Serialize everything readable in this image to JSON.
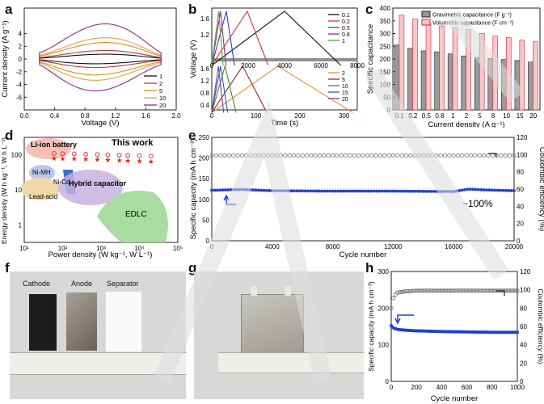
{
  "panels": {
    "a": {
      "letter": "a",
      "xlabel": "Voltage (V)",
      "ylabel": "Current density (A g⁻¹)",
      "xticks": [
        "0.0",
        "0.4",
        "0.8",
        "1.2",
        "1.6",
        "2.0"
      ],
      "yticks": [
        "4",
        "2",
        "0",
        "-2",
        "-4",
        "-6"
      ],
      "legend": [
        "1",
        "2",
        "5",
        "10",
        "20"
      ]
    },
    "b": {
      "letter": "b",
      "xlabel": "Time (s)",
      "ylabel": "Voltage (V)",
      "xticks_top": [
        "0",
        "2000",
        "4000",
        "6000",
        "8000"
      ],
      "xticks_bottom": [
        "0",
        "100",
        "200",
        "300"
      ],
      "yticks_top": [
        "1.6",
        "1.2"
      ],
      "yticks_bottom": [
        "1.6",
        "1.2",
        "0.8",
        "0.4"
      ],
      "legend_top": [
        "0.1",
        "0.2",
        "0.5",
        "0.8",
        "1"
      ],
      "legend_bottom": [
        "2",
        "5",
        "10",
        "15",
        "20"
      ]
    },
    "c": {
      "letter": "c",
      "xlabel": "Current density (A g⁻¹)",
      "ylabel": "Specific capacitance",
      "legend": [
        "Gravimetric capacitance (F g⁻¹)",
        "Volumetric capacitance (F cm⁻³)"
      ],
      "yticks": [
        "400",
        "350",
        "300",
        "250",
        "200",
        "150",
        "100",
        "50",
        "0"
      ]
    },
    "d": {
      "letter": "d",
      "xlabel": "Power density (W kg⁻¹, W L⁻¹)",
      "ylabel": "Energy density (W h kg⁻¹, W h L⁻¹)",
      "regions": [
        "Li-ion battery",
        "Ni-MH",
        "Ni-Cd",
        "Lead-acid",
        "Hybrid capacitor",
        "EDLC"
      ],
      "annotation": "This work",
      "xticks": [
        "10¹",
        "10²",
        "10³",
        "10⁴",
        "10⁵"
      ],
      "yticks": [
        "100",
        "10",
        "1"
      ]
    },
    "e": {
      "letter": "e",
      "xlabel": "Cycle number",
      "ylabel": "Specific capacity (mA h cm⁻³)",
      "y2label": "Coulombic efficiency (%)",
      "xticks": [
        "0",
        "4000",
        "8000",
        "12000",
        "16000",
        "20000"
      ],
      "yticks": [
        "250",
        "200",
        "150",
        "100",
        "50",
        "0"
      ],
      "y2ticks": [
        "120",
        "100",
        "80",
        "60",
        "40",
        "20",
        "0"
      ],
      "annotation": "~100%"
    },
    "f": {
      "letter": "f",
      "labels": [
        "Cathode",
        "Anode",
        "Separator"
      ]
    },
    "g": {
      "letter": "g"
    },
    "h": {
      "letter": "h",
      "xlabel": "Cycle number",
      "ylabel": "Specific capacity (mA h cm⁻³)",
      "y2label": "Coulombic efficiency (%)",
      "xticks": [
        "0",
        "200",
        "400",
        "600",
        "800",
        "1000"
      ],
      "yticks": [
        "300",
        "200",
        "100",
        "0"
      ],
      "y2ticks": [
        "120",
        "100",
        "80",
        "60",
        "40",
        "20",
        "0"
      ]
    }
  },
  "chart_data": [
    {
      "type": "line",
      "panel": "a",
      "title": "",
      "xlabel": "Voltage (V)",
      "ylabel": "Current density (A g⁻¹)",
      "xlim": [
        0,
        2.0
      ],
      "ylim": [
        -8,
        8
      ],
      "series": [
        {
          "name": "1",
          "color": "#111111"
        },
        {
          "name": "2",
          "color": "#c0392b"
        },
        {
          "name": "5",
          "color": "#e08a20"
        },
        {
          "name": "10",
          "color": "#e6a040"
        },
        {
          "name": "20",
          "color": "#8e2d8e"
        }
      ],
      "peak_current": {
        "1": 0.9,
        "2": 1.6,
        "5": 3.1,
        "10": 4.0,
        "20": 6.6
      },
      "trough_current": {
        "1": -0.9,
        "2": -1.6,
        "5": -3.0,
        "10": -4.0,
        "20": -6.0
      }
    },
    {
      "type": "line",
      "panel": "b-top",
      "xlabel": "Time (s)",
      "ylabel": "Voltage (V)",
      "xlim": [
        0,
        8000
      ],
      "series": [
        {
          "name": "0.1",
          "color": "#111111",
          "t_peak": 4000,
          "t_end": 7100
        },
        {
          "name": "0.2",
          "color": "#e0303a",
          "t_peak": 1950,
          "t_end": 3100
        },
        {
          "name": "0.5",
          "color": "#3040c0",
          "t_peak": 800,
          "t_end": 1250
        },
        {
          "name": "0.8",
          "color": "#a02090",
          "t_peak": 480,
          "t_end": 780
        },
        {
          "name": "1",
          "color": "#5aaa30",
          "t_peak": 380,
          "t_end": 620
        }
      ]
    },
    {
      "type": "line",
      "panel": "b-bottom",
      "xlabel": "Time (s)",
      "ylabel": "Voltage (V)",
      "xlim": [
        0,
        330
      ],
      "series": [
        {
          "name": "2",
          "color": "#e89030",
          "t_peak": 150,
          "t_end": 320
        },
        {
          "name": "5",
          "color": "#a02020",
          "t_peak": 70,
          "t_end": 125
        },
        {
          "name": "10",
          "color": "#4a8a30",
          "t_peak": 30,
          "t_end": 55
        },
        {
          "name": "15",
          "color": "#2060c0",
          "t_peak": 20,
          "t_end": 36
        },
        {
          "name": "20",
          "color": "#8a3a8a",
          "t_peak": 15,
          "t_end": 27
        }
      ]
    },
    {
      "type": "bar",
      "panel": "c",
      "categories": [
        "0.1",
        "0.2",
        "0.5",
        "0.8",
        "1",
        "2",
        "5",
        "8",
        "10",
        "15",
        "20"
      ],
      "ylim": [
        0,
        400
      ],
      "series": [
        {
          "name": "Gravimetric capacitance (F g⁻¹)",
          "values": [
            255,
            242,
            232,
            228,
            220,
            212,
            206,
            202,
            198,
            194,
            188
          ]
        },
        {
          "name": "Volumetric capacitance (F cm⁻³)",
          "values": [
            372,
            357,
            338,
            330,
            322,
            315,
            300,
            290,
            284,
            274,
            268
          ]
        }
      ]
    },
    {
      "type": "scatter",
      "panel": "d",
      "xlabel": "Power density (W kg⁻¹, W L⁻¹)",
      "ylabel": "Energy density (W h kg⁻¹, W h L⁻¹)",
      "series": [
        {
          "name": "This work (filled)",
          "x": [
            60,
            100,
            200,
            400,
            800,
            1500,
            3000,
            5000,
            10000,
            20000
          ],
          "y": [
            80,
            78,
            77,
            75,
            73,
            71,
            69,
            68,
            66,
            64
          ]
        },
        {
          "name": "This work (open)",
          "x": [
            60,
            100,
            200,
            400,
            800,
            1500,
            3000,
            5000,
            10000,
            20000
          ],
          "y": [
            110,
            108,
            106,
            104,
            102,
            100,
            98,
            96,
            94,
            92
          ]
        }
      ]
    },
    {
      "type": "scatter",
      "panel": "e",
      "xlabel": "Cycle number",
      "ylabel": "Specific capacity (mA h cm⁻³)",
      "xlim": [
        0,
        20000
      ],
      "ylim": [
        0,
        250
      ],
      "y2lim": [
        0,
        120
      ],
      "series": [
        {
          "name": "Specific capacity",
          "x": [
            0,
            2000,
            4000,
            8000,
            12000,
            16000,
            17000,
            18000,
            20000
          ],
          "y": [
            122,
            124,
            121,
            120,
            120,
            119,
            125,
            123,
            121
          ]
        },
        {
          "name": "Coulombic efficiency",
          "x": [
            0,
            4000,
            8000,
            12000,
            16000,
            20000
          ],
          "y": [
            99,
            99,
            99,
            99,
            99,
            99
          ]
        }
      ]
    },
    {
      "type": "scatter",
      "panel": "h",
      "xlabel": "Cycle number",
      "ylabel": "Specific capacity (mA h cm⁻³)",
      "xlim": [
        0,
        1000
      ],
      "ylim": [
        0,
        300
      ],
      "y2lim": [
        0,
        120
      ],
      "series": [
        {
          "name": "Specific capacity",
          "x": [
            0,
            20,
            50,
            100,
            200,
            400,
            600,
            800,
            1000
          ],
          "y": [
            152,
            145,
            142,
            140,
            138,
            136,
            135,
            134,
            134
          ]
        },
        {
          "name": "Coulombic efficiency",
          "x": [
            0,
            20,
            50,
            100,
            200,
            400,
            600,
            800,
            1000
          ],
          "y": [
            80,
            93,
            97,
            98,
            99,
            99,
            99,
            99,
            99
          ]
        }
      ]
    }
  ]
}
